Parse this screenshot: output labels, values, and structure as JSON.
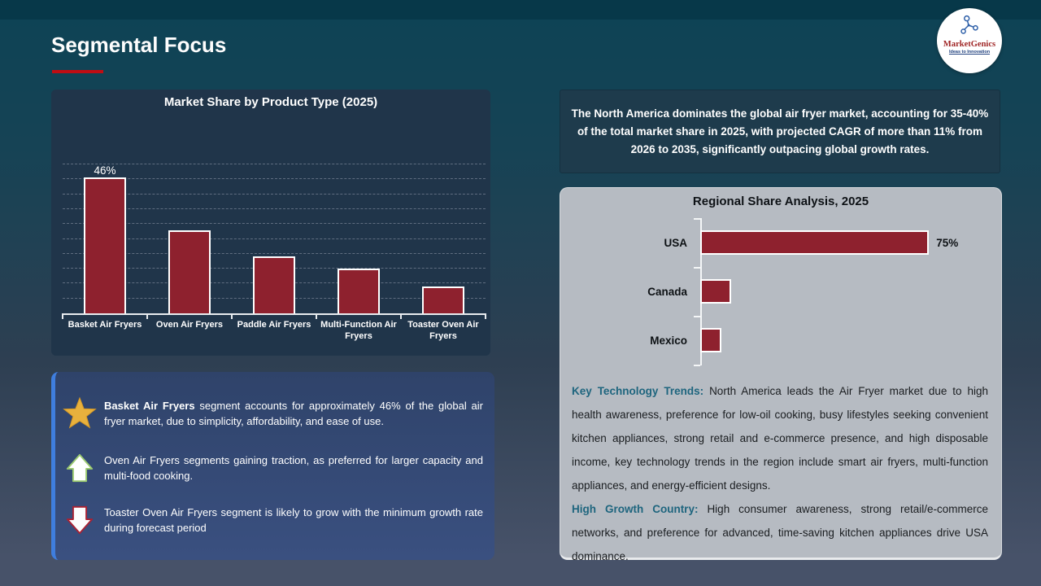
{
  "slide": {
    "title": "Segmental Focus"
  },
  "logo": {
    "brand": "MarketGenics",
    "tagline": "Ideas to Innovation"
  },
  "colors": {
    "accent_red": "#c00d13",
    "bar_fill": "#8e212e",
    "bar_border": "#ffffff",
    "note_heading_teal": "#1e657e",
    "callout_stripe_blue": "#3f7ede",
    "star_gold": "#e8b13d"
  },
  "chart_data": [
    {
      "type": "bar",
      "title": "Market Share by Product Type (2025)",
      "categories": [
        "Basket Air Fryers",
        "Oven Air Fryers",
        "Paddle Air Fryers",
        "Multi-Function Air Fryers",
        "Toaster Oven Air Fryers"
      ],
      "values": [
        46,
        28,
        19,
        15,
        9
      ],
      "data_labels": [
        "46%",
        null,
        null,
        null,
        null
      ],
      "unit": "%",
      "ylim": [
        0,
        50
      ],
      "gridline_step": 5,
      "grid": true,
      "legend": false
    },
    {
      "type": "bar",
      "orientation": "horizontal",
      "title": "Regional Share Analysis, 2025",
      "categories": [
        "USA",
        "Canada",
        "Mexico"
      ],
      "values": [
        75,
        10,
        7
      ],
      "data_labels": [
        "75%",
        null,
        null
      ],
      "unit": "%",
      "xlim": [
        0,
        80
      ],
      "grid": false,
      "legend": false
    }
  ],
  "highlights": {
    "items": [
      {
        "icon": "star-icon",
        "lead": "Basket Air Fryers",
        "text": "segment accounts for approximately 46% of the global air fryer market, due to simplicity, affordability, and ease of use."
      },
      {
        "icon": "arrow-up-icon",
        "lead": "",
        "text": "Oven Air Fryers segments gaining traction, as preferred for larger capacity and multi-food cooking."
      },
      {
        "icon": "arrow-down-icon",
        "lead": "",
        "text": "Toaster Oven Air Fryers segment is likely to grow with the minimum growth rate during forecast period"
      }
    ]
  },
  "right_column": {
    "summary": "The North America dominates the global air fryer market, accounting for 35-40% of the total market share in 2025, with projected CAGR of more than 11% from 2026 to 2035, significantly outpacing global growth rates.",
    "notes": [
      {
        "heading": "Key Technology Trends:",
        "body": "North America leads the Air Fryer market due to high health awareness, preference for low-oil cooking, busy lifestyles seeking convenient kitchen appliances, strong retail and e-commerce presence, and high disposable income, key technology trends in the region include smart air fryers, multi-function appliances, and energy-efficient designs."
      },
      {
        "heading": "High Growth Country:",
        "body": "High consumer awareness, strong retail/e-commerce networks, and preference for advanced, time-saving kitchen appliances drive USA dominance."
      }
    ]
  }
}
